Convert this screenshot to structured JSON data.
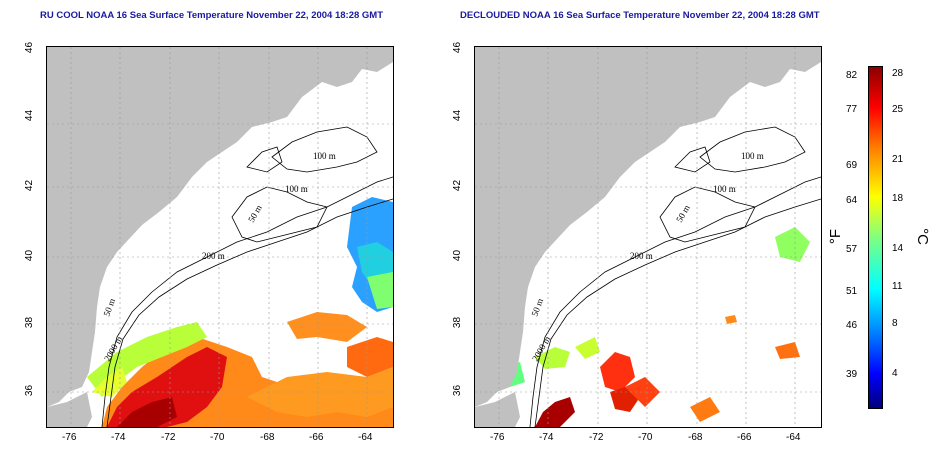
{
  "titles": {
    "left": "RU COOL NOAA 16 Sea Surface Temperature November 22, 2004 18:28 GMT",
    "right": "DECLOUDED NOAA 16 Sea Surface Temperature November 22, 2004 18:28 GMT"
  },
  "lon_ticks": [
    "-76",
    "-74",
    "-72",
    "-70",
    "-68",
    "-66",
    "-64"
  ],
  "lat_ticks": [
    "46",
    "44",
    "42",
    "40",
    "38",
    "36"
  ],
  "contour_labels": [
    "100 m",
    "100 m",
    "50 m",
    "200 m",
    "50 m",
    "2000 m"
  ],
  "colorbar": {
    "f_label": "°F",
    "c_label": "°C",
    "f_ticks": [
      "82",
      "77",
      "69",
      "64",
      "57",
      "51",
      "46",
      "39"
    ],
    "c_ticks": [
      "28",
      "25",
      "21",
      "18",
      "14",
      "11",
      "8",
      "4"
    ]
  },
  "colors": {
    "land": "#c0c0c0",
    "title": "#1a1aa0",
    "grid": "#9a9a9a"
  }
}
